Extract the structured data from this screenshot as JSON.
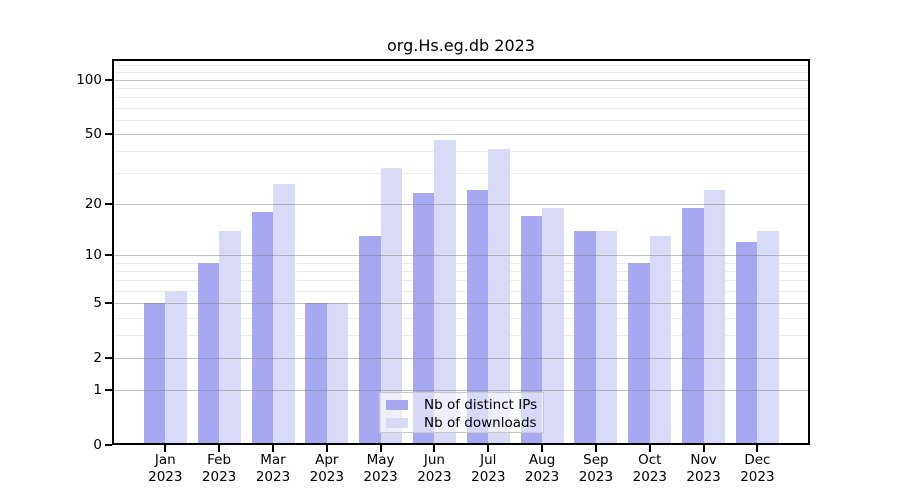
{
  "title": "org.Hs.eg.db 2023",
  "chart_data": {
    "type": "bar",
    "title": "org.Hs.eg.db 2023",
    "categories": [
      "Jan 2023",
      "Feb 2023",
      "Mar 2023",
      "Apr 2023",
      "May 2023",
      "Jun 2023",
      "Jul 2023",
      "Aug 2023",
      "Sep 2023",
      "Oct 2023",
      "Nov 2023",
      "Dec 2023"
    ],
    "series": [
      {
        "name": "Nb of distinct IPs",
        "color": "#a8a8f2",
        "values": [
          5,
          9,
          18,
          5,
          13,
          23,
          24,
          17,
          14,
          9,
          19,
          12
        ]
      },
      {
        "name": "Nb of downloads",
        "color": "#d9d9f8",
        "values": [
          6,
          14,
          26,
          5,
          32,
          46,
          41,
          19,
          14,
          13,
          24,
          14
        ]
      }
    ],
    "yscale": "log1p",
    "ylim": [
      0,
      130
    ],
    "yticks": [
      0,
      1,
      2,
      5,
      10,
      20,
      50,
      100
    ],
    "yticks_minor": [
      3,
      4,
      6,
      7,
      8,
      9,
      30,
      40,
      60,
      70,
      80,
      90,
      110,
      120
    ],
    "xlabel": "",
    "ylabel": "",
    "grid": true,
    "legend_position": "inside-bottom-center"
  }
}
